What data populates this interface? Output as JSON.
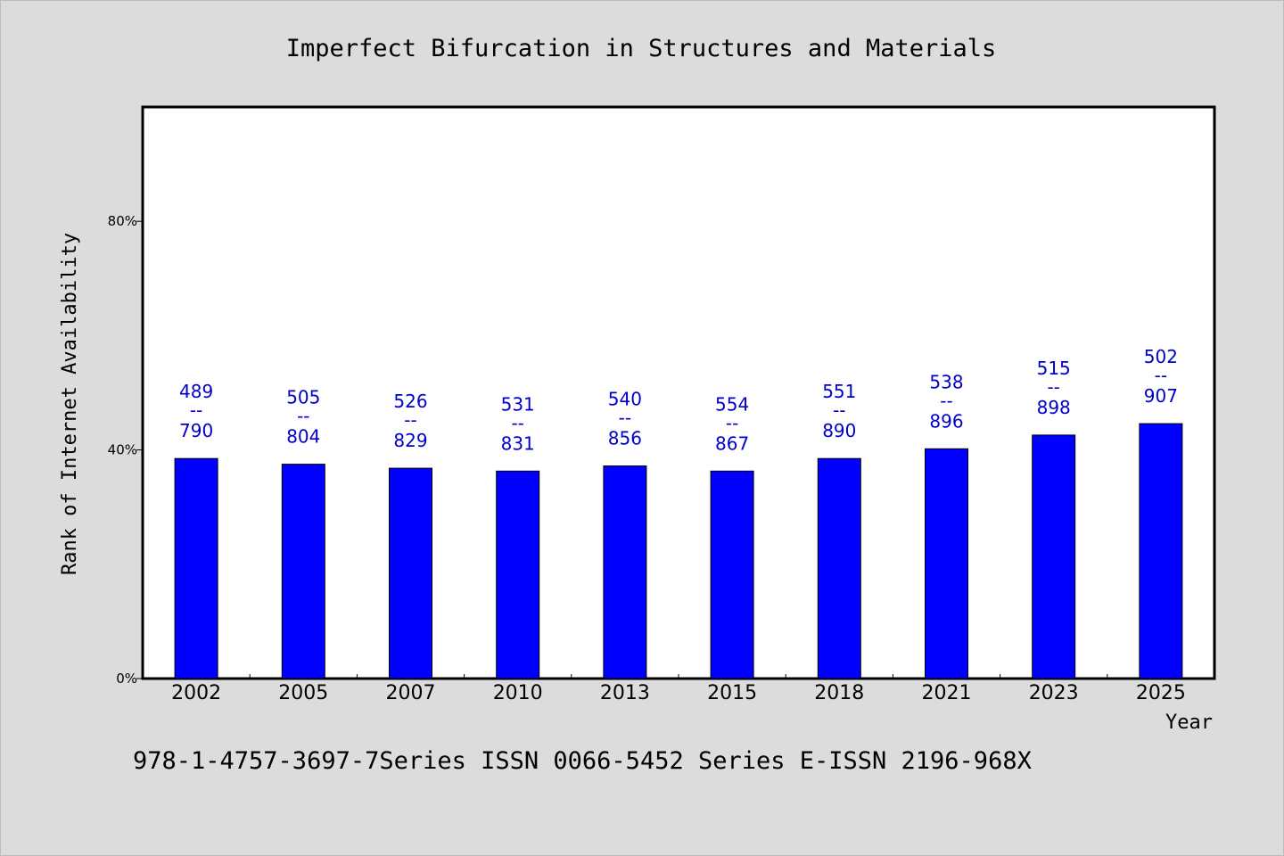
{
  "footer_text": "978-1-4757-3697-7Series ISSN 0066-5452 Series E-ISSN 2196-968X",
  "colors": {
    "bar": "#0000ff",
    "data_label": "#0000cc",
    "plot_background": "#ffffff",
    "page_background": "#dcdcdc"
  },
  "chart_data": {
    "type": "bar",
    "title": "Imperfect Bifurcation in Structures and Materials",
    "xlabel": "Year",
    "ylabel": "Rank of Internet Availability",
    "categories": [
      "2002",
      "2005",
      "2007",
      "2010",
      "2013",
      "2015",
      "2018",
      "2021",
      "2023",
      "2025"
    ],
    "values": [
      38.5,
      37.5,
      36.8,
      36.3,
      37.2,
      36.3,
      38.5,
      40.2,
      42.6,
      44.6
    ],
    "ylim": [
      0,
      100
    ],
    "yticks": [
      0,
      40,
      80
    ],
    "ytick_labels": [
      "0%",
      "40%",
      "80%"
    ],
    "grid": false,
    "legend": "none",
    "labels_top": [
      "489",
      "505",
      "526",
      "531",
      "540",
      "554",
      "551",
      "538",
      "515",
      "502"
    ],
    "labels_sep": [
      "--",
      "--",
      "--",
      "--",
      "--",
      "--",
      "--",
      "--",
      "--",
      "--"
    ],
    "labels_bottom": [
      "790",
      "804",
      "829",
      "831",
      "856",
      "867",
      "890",
      "896",
      "898",
      "907"
    ]
  }
}
